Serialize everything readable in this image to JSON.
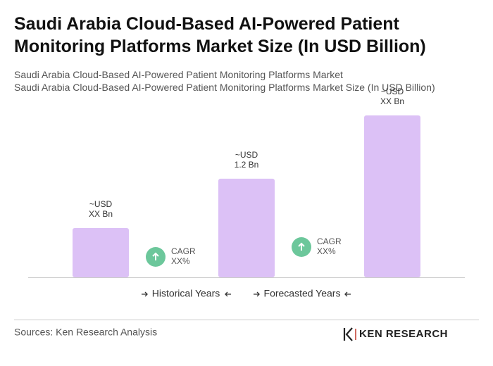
{
  "chart_data": {
    "type": "bar",
    "title": "Saudi Arabia Cloud-Based AI-Powered Patient Monitoring Platforms Market Size (In USD Billion)",
    "subtitle": [
      "Saudi Arabia Cloud-Based AI-Powered Patient Monitoring Platforms Market",
      "Saudi Arabia Cloud-Based AI-Powered Patient Monitoring Platforms Market Size (In USD Billion)"
    ],
    "categories": [
      null,
      null,
      null
    ],
    "values": [
      0.6,
      1.2,
      1.97
    ],
    "value_labels": [
      [
        "~USD",
        "XX Bn"
      ],
      [
        "~USD",
        "1.2 Bn"
      ],
      [
        "~USD",
        "XX Bn"
      ]
    ],
    "color": "#dcc1f6",
    "cagr": [
      [
        "CAGR",
        "XX%"
      ],
      [
        "CAGR",
        "XX%"
      ]
    ],
    "cagr_color": "#6cc79b",
    "periods": [
      "Historical Years",
      "Forecasted Years"
    ],
    "source": "Sources: Ken Research Analysis",
    "logo": "KEN RESEARCH"
  }
}
